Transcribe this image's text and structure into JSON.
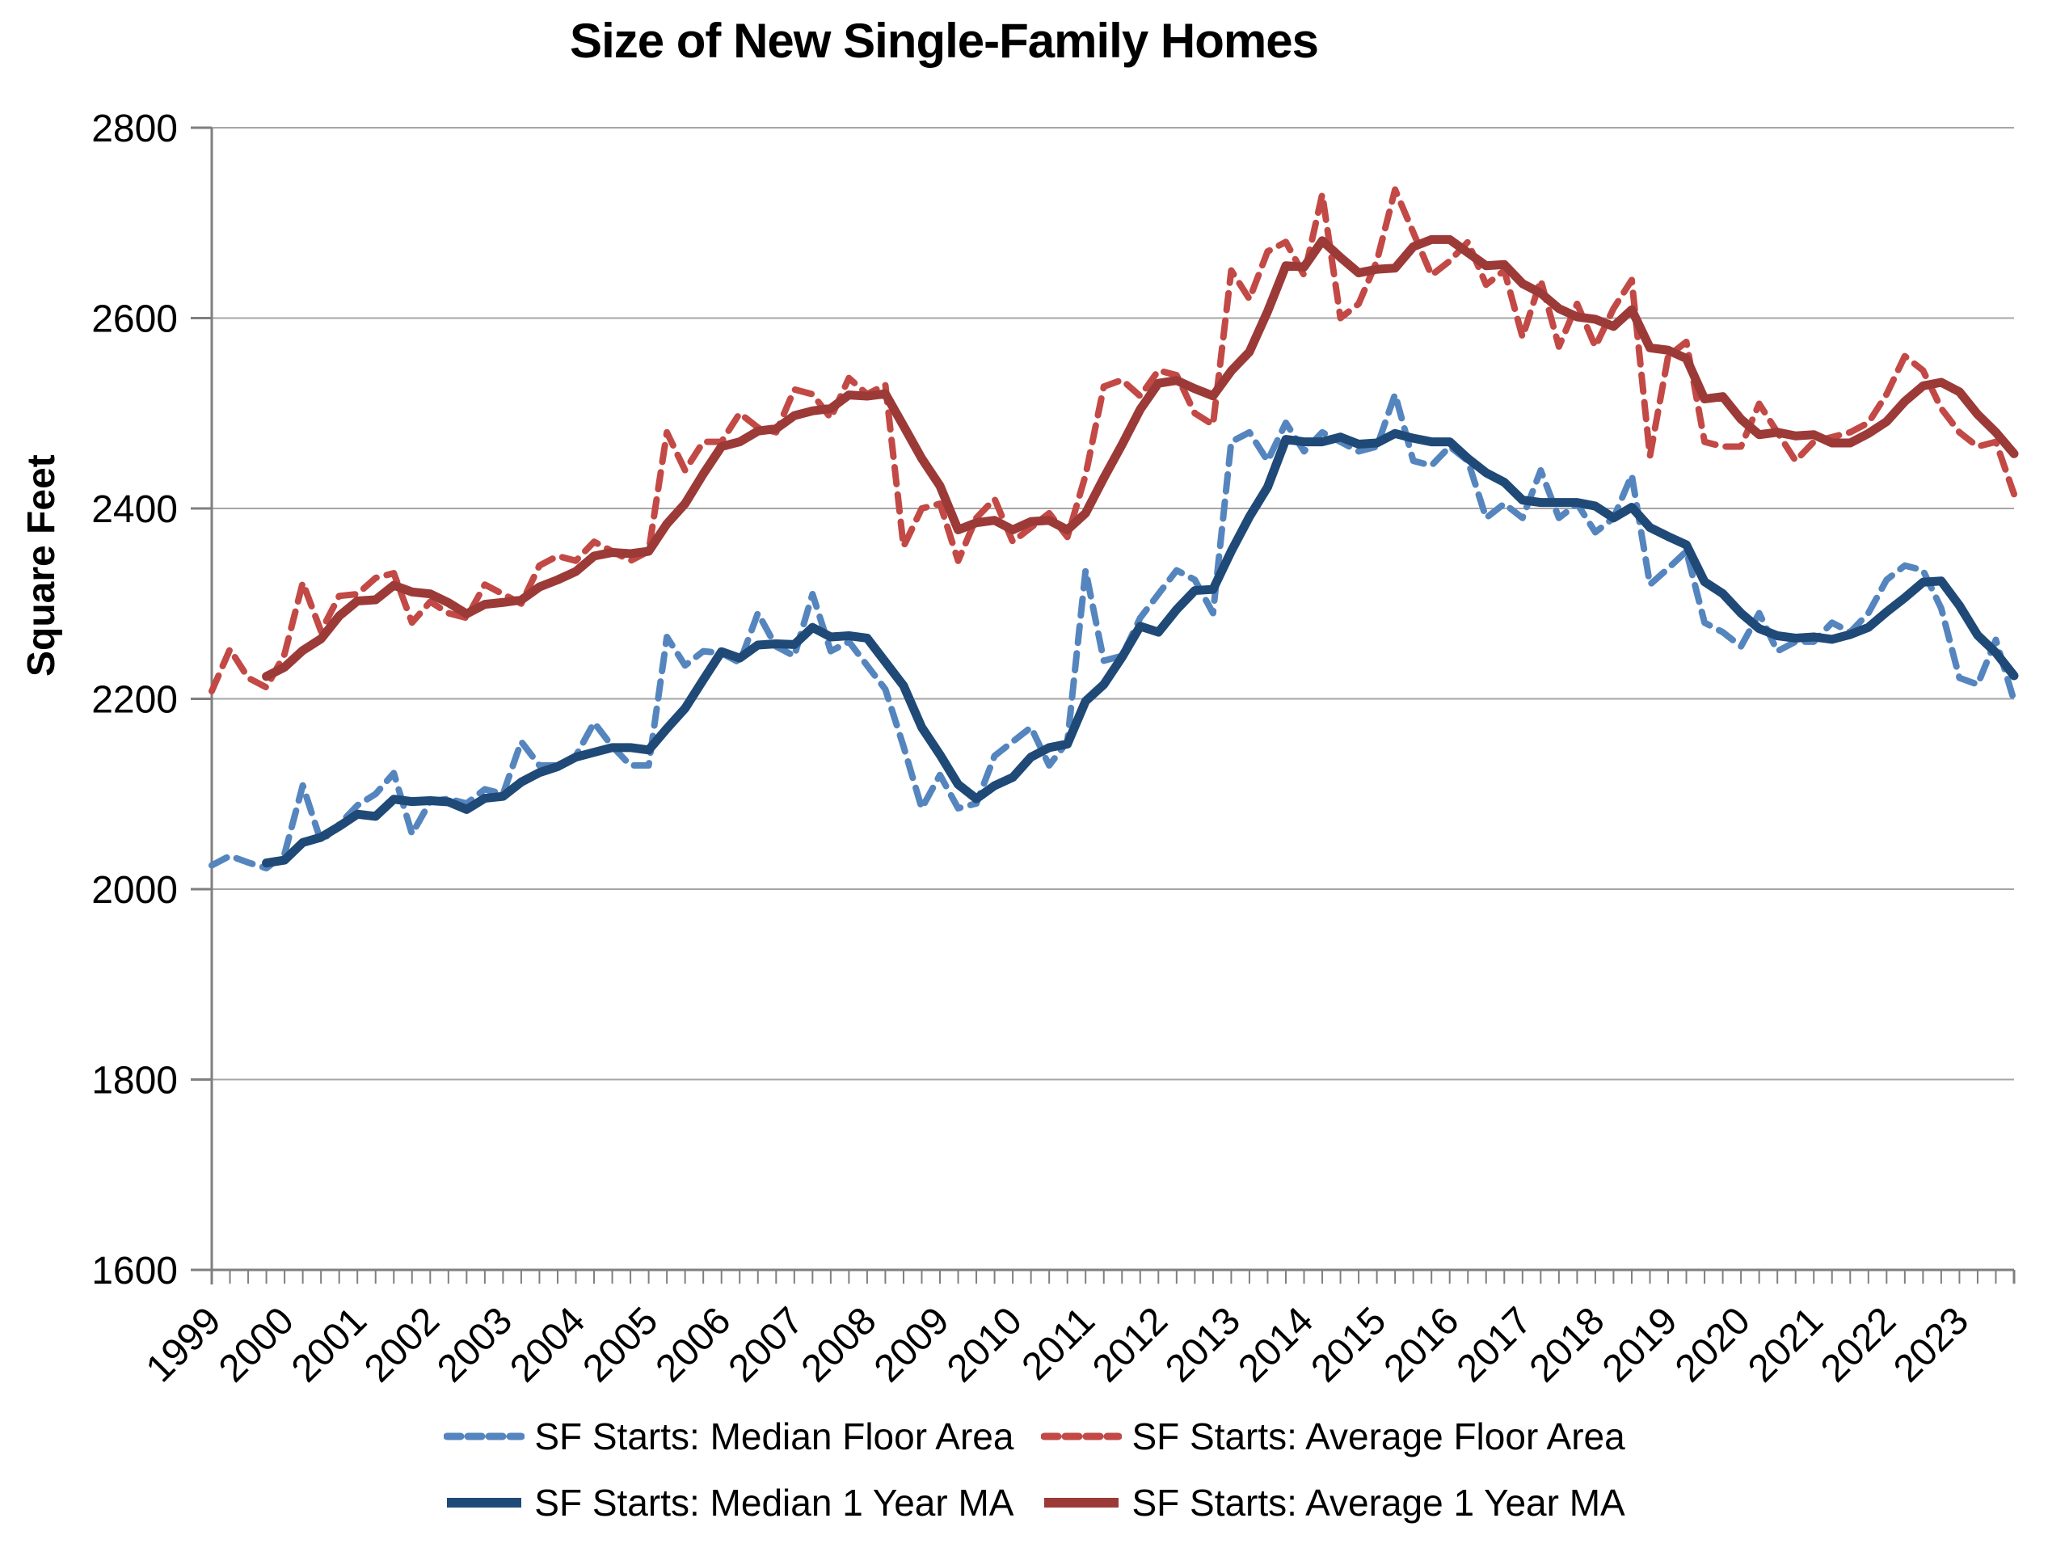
{
  "title": "Size of New Single-Family Homes",
  "y_axis": {
    "label": "Square Feet",
    "ticks": [
      1600,
      1800,
      2000,
      2200,
      2400,
      2600,
      2800
    ]
  },
  "x_axis": {
    "tick_labels": [
      "1999",
      "2000",
      "2001",
      "2002",
      "2003",
      "2004",
      "2005",
      "2006",
      "2007",
      "2008",
      "2009",
      "2010",
      "2011",
      "2012",
      "2013",
      "2014",
      "2015",
      "2016",
      "2017",
      "2018",
      "2019",
      "2020",
      "2021",
      "2022",
      "2023"
    ],
    "minor_ticks_per_year": 4
  },
  "colors": {
    "median_quarterly": "#5585BE",
    "average_quarterly": "#C24945",
    "median_ma": "#1F4977",
    "average_ma": "#9C3A38",
    "gridline": "#A6A6A6",
    "axis": "#7F7F7F",
    "text": "#000000",
    "background": "#FFFFFF"
  },
  "legend": {
    "rows": [
      [
        {
          "label": "SF Starts: Median Floor Area",
          "color_key": "median_quarterly",
          "style": "dashed"
        },
        {
          "label": "SF Starts: Average Floor Area",
          "color_key": "average_quarterly",
          "style": "dashed"
        }
      ],
      [
        {
          "label": "SF Starts: Median 1 Year MA",
          "color_key": "median_ma",
          "style": "solid"
        },
        {
          "label": "SF Starts: Average 1 Year MA",
          "color_key": "average_ma",
          "style": "solid"
        }
      ]
    ]
  },
  "chart_data": {
    "type": "line",
    "title": "Size of New Single-Family Homes",
    "ylabel": "Square Feet",
    "ylim": [
      1600,
      2800
    ],
    "grid": "horizontal",
    "legend_position": "bottom",
    "x_start": "1999Q1",
    "x_freq": "quarterly",
    "x_count": 100,
    "x_year_labels": [
      1999,
      2000,
      2001,
      2002,
      2003,
      2004,
      2005,
      2006,
      2007,
      2008,
      2009,
      2010,
      2011,
      2012,
      2013,
      2014,
      2015,
      2016,
      2017,
      2018,
      2019,
      2020,
      2021,
      2022,
      2023
    ],
    "series": [
      {
        "name": "SF Starts: Median Floor Area",
        "style": "dashed",
        "color_key": "median_quarterly",
        "values": [
          2025,
          2035,
          2028,
          2022,
          2037,
          2109,
          2050,
          2068,
          2088,
          2100,
          2122,
          2058,
          2092,
          2095,
          2090,
          2105,
          2100,
          2155,
          2130,
          2130,
          2140,
          2175,
          2150,
          2130,
          2130,
          2265,
          2235,
          2250,
          2248,
          2238,
          2290,
          2255,
          2245,
          2310,
          2250,
          2260,
          2235,
          2210,
          2150,
          2085,
          2120,
          2085,
          2090,
          2140,
          2155,
          2170,
          2130,
          2155,
          2335,
          2240,
          2245,
          2285,
          2310,
          2335,
          2325,
          2290,
          2470,
          2480,
          2450,
          2490,
          2460,
          2480,
          2470,
          2460,
          2465,
          2520,
          2450,
          2445,
          2465,
          2450,
          2390,
          2405,
          2390,
          2440,
          2390,
          2405,
          2375,
          2390,
          2435,
          2320,
          2337,
          2355,
          2280,
          2270,
          2255,
          2290,
          2250,
          2260,
          2260,
          2280,
          2270,
          2290,
          2325,
          2340,
          2335,
          2295,
          2222,
          2215,
          2262,
          2198
        ]
      },
      {
        "name": "SF Starts: Average Floor Area",
        "style": "dashed",
        "color_key": "average_quarterly",
        "values": [
          2208,
          2252,
          2222,
          2212,
          2247,
          2322,
          2271,
          2308,
          2310,
          2327,
          2332,
          2280,
          2302,
          2290,
          2285,
          2320,
          2310,
          2300,
          2340,
          2350,
          2345,
          2365,
          2355,
          2345,
          2355,
          2480,
          2440,
          2470,
          2470,
          2500,
          2485,
          2480,
          2525,
          2520,
          2495,
          2537,
          2520,
          2530,
          2360,
          2400,
          2405,
          2345,
          2390,
          2410,
          2365,
          2380,
          2395,
          2370,
          2435,
          2528,
          2535,
          2518,
          2545,
          2540,
          2500,
          2488,
          2650,
          2620,
          2670,
          2680,
          2645,
          2730,
          2600,
          2615,
          2660,
          2735,
          2690,
          2645,
          2660,
          2680,
          2635,
          2650,
          2580,
          2640,
          2570,
          2615,
          2570,
          2610,
          2640,
          2455,
          2560,
          2575,
          2470,
          2465,
          2465,
          2510,
          2480,
          2450,
          2470,
          2475,
          2480,
          2490,
          2520,
          2560,
          2545,
          2505,
          2480,
          2465,
          2470,
          2415
        ]
      },
      {
        "name": "SF Starts: Median 1 Year MA",
        "style": "solid",
        "color_key": "median_ma",
        "derived_from": "SF Starts: Median Floor Area",
        "derivation": "trailing 4-quarter moving average"
      },
      {
        "name": "SF Starts: Average 1 Year MA",
        "style": "solid",
        "color_key": "average_ma",
        "derived_from": "SF Starts: Average Floor Area",
        "derivation": "trailing 4-quarter moving average"
      }
    ]
  }
}
